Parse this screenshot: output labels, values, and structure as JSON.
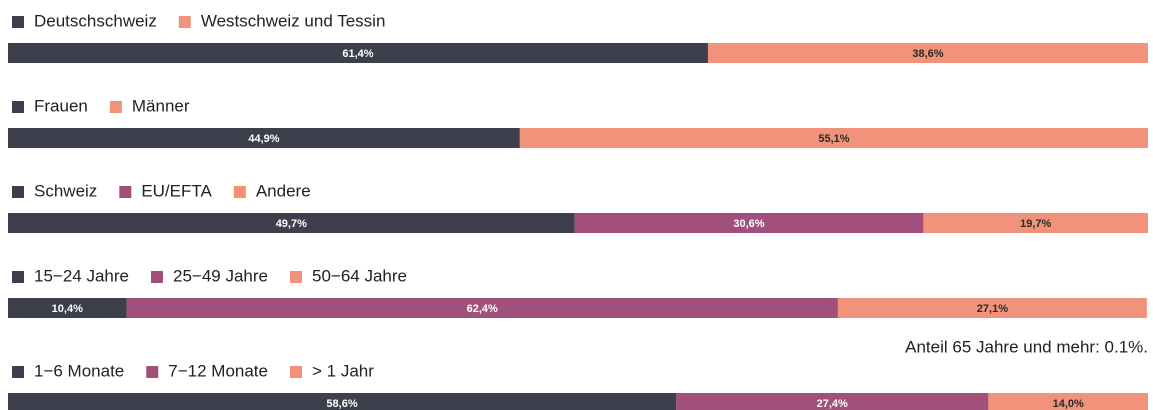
{
  "chart_data": [
    {
      "type": "bar",
      "stacked": true,
      "orientation": "horizontal",
      "xlim": [
        0,
        100
      ],
      "series": [
        {
          "name": "Deutschschweiz",
          "color": "#3d3f4c",
          "values": [
            61.4
          ],
          "value_labels": [
            "61,4%"
          ]
        },
        {
          "name": "Westschweiz und Tessin",
          "color": "#f0937a",
          "values": [
            38.6
          ],
          "value_labels": [
            "38,6%"
          ]
        }
      ]
    },
    {
      "type": "bar",
      "stacked": true,
      "orientation": "horizontal",
      "xlim": [
        0,
        100
      ],
      "series": [
        {
          "name": "Frauen",
          "color": "#3d3f4c",
          "values": [
            44.9
          ],
          "value_labels": [
            "44,9%"
          ]
        },
        {
          "name": "Männer",
          "color": "#f0937a",
          "values": [
            55.1
          ],
          "value_labels": [
            "55,1%"
          ]
        }
      ]
    },
    {
      "type": "bar",
      "stacked": true,
      "orientation": "horizontal",
      "xlim": [
        0,
        100
      ],
      "series": [
        {
          "name": "Schweiz",
          "color": "#3d3f4c",
          "values": [
            49.7
          ],
          "value_labels": [
            "49,7%"
          ]
        },
        {
          "name": "EU/EFTA",
          "color": "#a0507a",
          "values": [
            30.6
          ],
          "value_labels": [
            "30,6%"
          ]
        },
        {
          "name": "Andere",
          "color": "#f0937a",
          "values": [
            19.7
          ],
          "value_labels": [
            "19,7%"
          ]
        }
      ]
    },
    {
      "type": "bar",
      "stacked": true,
      "orientation": "horizontal",
      "xlim": [
        0,
        100
      ],
      "annotation": "Anteil 65 Jahre und mehr: 0.1%.",
      "series": [
        {
          "name": "15−24 Jahre",
          "color": "#3d3f4c",
          "values": [
            10.4
          ],
          "value_labels": [
            "10,4%"
          ]
        },
        {
          "name": "25−49 Jahre",
          "color": "#a0507a",
          "values": [
            62.4
          ],
          "value_labels": [
            "62,4%"
          ]
        },
        {
          "name": "50−64 Jahre",
          "color": "#f0937a",
          "values": [
            27.1
          ],
          "value_labels": [
            "27,1%"
          ]
        }
      ]
    },
    {
      "type": "bar",
      "stacked": true,
      "orientation": "horizontal",
      "xlim": [
        0,
        100
      ],
      "series": [
        {
          "name": "1−6 Monate",
          "color": "#3d3f4c",
          "values": [
            58.6
          ],
          "value_labels": [
            "58,6%"
          ]
        },
        {
          "name": "7−12 Monate",
          "color": "#a0507a",
          "values": [
            27.4
          ],
          "value_labels": [
            "27,4%"
          ]
        },
        {
          "name": "> 1 Jahr",
          "color": "#f0937a",
          "values": [
            14.0
          ],
          "value_labels": [
            "14,0%"
          ]
        }
      ]
    }
  ]
}
